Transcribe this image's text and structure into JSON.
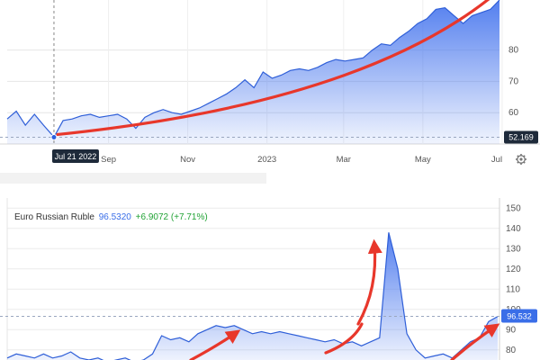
{
  "chart_data": [
    {
      "type": "area",
      "title": "",
      "x_ticks": [
        "Sep",
        "Nov",
        "2023",
        "Mar",
        "May",
        "Jul"
      ],
      "y_ticks": [
        60,
        70,
        80
      ],
      "ylim": [
        50,
        96
      ],
      "crosshair_date_label": "Jul 21 2022",
      "last_value_label": "52.169",
      "last_value": 52.169,
      "grid": true,
      "series": [
        {
          "x": [
            "2022-06-15",
            "2022-06-22",
            "2022-06-29",
            "2022-07-06",
            "2022-07-13",
            "2022-07-21",
            "2022-07-28",
            "2022-08-04",
            "2022-08-11",
            "2022-08-18",
            "2022-08-25",
            "2022-09-01",
            "2022-09-08",
            "2022-09-15",
            "2022-09-22",
            "2022-09-29",
            "2022-10-06",
            "2022-10-13",
            "2022-10-20",
            "2022-10-27",
            "2022-11-03",
            "2022-11-10",
            "2022-11-17",
            "2022-11-24",
            "2022-12-01",
            "2022-12-08",
            "2022-12-15",
            "2022-12-22",
            "2022-12-29",
            "2023-01-05",
            "2023-01-12",
            "2023-01-19",
            "2023-01-26",
            "2023-02-02",
            "2023-02-09",
            "2023-02-16",
            "2023-02-23",
            "2023-03-02",
            "2023-03-09",
            "2023-03-16",
            "2023-03-23",
            "2023-03-30",
            "2023-04-06",
            "2023-04-13",
            "2023-04-20",
            "2023-04-27",
            "2023-05-04",
            "2023-05-11",
            "2023-05-18",
            "2023-05-25",
            "2023-06-01",
            "2023-06-08",
            "2023-06-15",
            "2023-06-22",
            "2023-06-29"
          ],
          "values": [
            58.0,
            60.5,
            56.0,
            59.5,
            56.0,
            52.2,
            57.5,
            58.0,
            59.0,
            59.5,
            58.5,
            59.0,
            59.5,
            58.0,
            55.0,
            58.5,
            60.0,
            61.0,
            60.0,
            59.5,
            60.5,
            61.5,
            63.0,
            64.5,
            66.0,
            68.0,
            70.5,
            68.0,
            73.0,
            71.0,
            72.0,
            73.5,
            74.0,
            73.5,
            74.5,
            76.0,
            77.0,
            76.5,
            77.0,
            77.5,
            80.0,
            82.0,
            81.5,
            84.0,
            86.0,
            88.5,
            90.0,
            93.0,
            93.5,
            91.0,
            88.5,
            91.0,
            92.0,
            93.0,
            96.0
          ]
        }
      ],
      "trend_arrow_color": "#e8372b",
      "area_color": "#4a78ee"
    },
    {
      "type": "area",
      "title": "Euro Russian Ruble",
      "header": {
        "pair": "Euro Russian Ruble",
        "price": "96.5320",
        "change": "+6.9072 (+7.71%)"
      },
      "y_ticks": [
        80,
        90,
        100,
        110,
        120,
        130,
        140,
        150
      ],
      "ylim": [
        75,
        155
      ],
      "last_value_label": "96.532",
      "last_value": 96.532,
      "grid": true,
      "series": [
        {
          "x": [
            0,
            1,
            2,
            3,
            4,
            5,
            6,
            7,
            8,
            9,
            10,
            11,
            12,
            13,
            14,
            15,
            16,
            17,
            18,
            19,
            20,
            21,
            22,
            23,
            24,
            25,
            26,
            27,
            28,
            29,
            30,
            31,
            32,
            33,
            34,
            35,
            36,
            37,
            38,
            39,
            40,
            41,
            42,
            43,
            44,
            45,
            46,
            47,
            48,
            49,
            50,
            51,
            52,
            53,
            54
          ],
          "values": [
            76,
            78,
            77,
            76,
            78,
            76,
            77,
            79,
            76,
            75,
            76,
            74,
            75,
            76,
            74,
            75,
            78,
            87,
            85,
            86,
            84,
            88,
            90,
            92,
            91,
            92,
            90,
            88,
            89,
            88,
            89,
            88,
            87,
            86,
            85,
            84,
            85,
            83,
            84,
            82,
            84,
            86,
            138,
            120,
            88,
            80,
            76,
            77,
            78,
            76,
            80,
            84,
            86,
            94,
            96.5
          ]
        }
      ],
      "trend_arrow_color": "#e8372b",
      "area_color": "#4a78ee"
    }
  ]
}
